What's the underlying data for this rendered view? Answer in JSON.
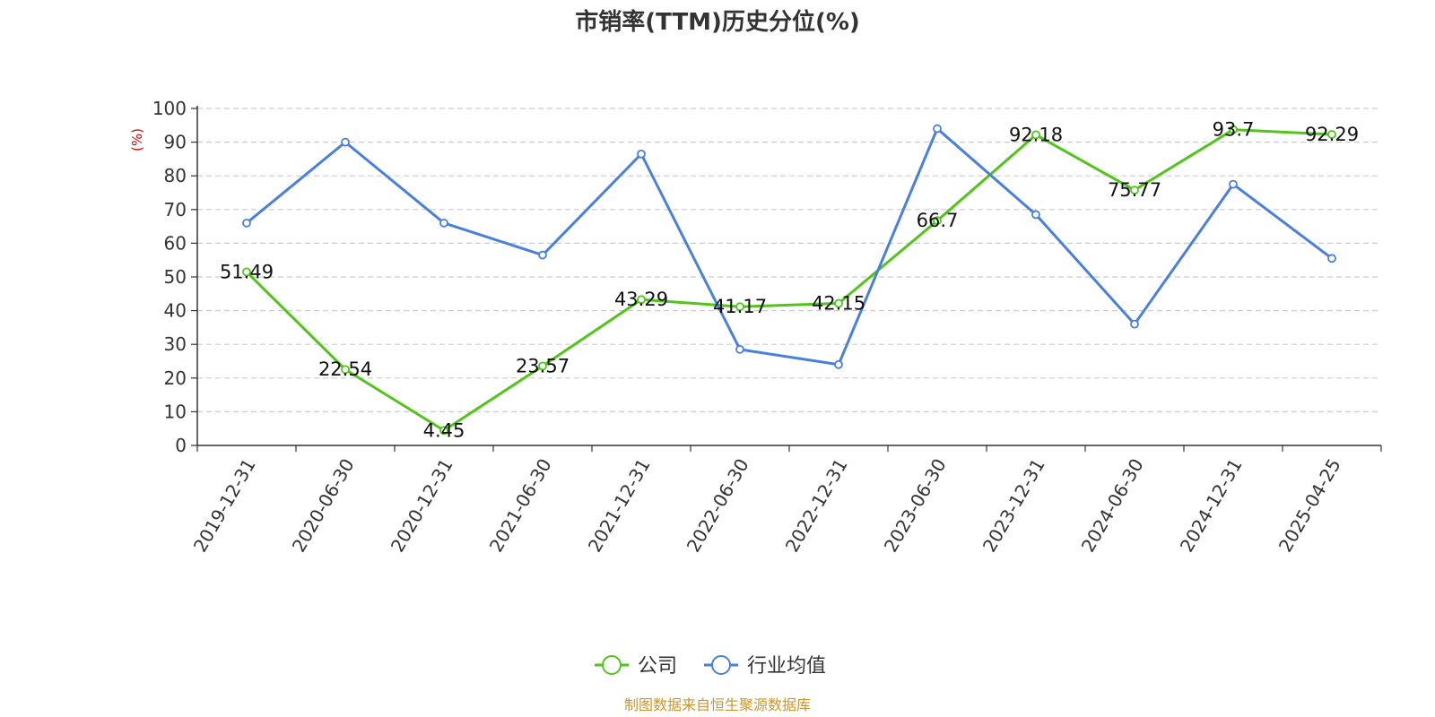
{
  "chart_data": {
    "type": "line",
    "title": "市销率(TTM)历史分位(%)",
    "ylabel": "(%)",
    "ylim": [
      0,
      100
    ],
    "yticks": [
      0,
      10,
      20,
      30,
      40,
      50,
      60,
      70,
      80,
      90,
      100
    ],
    "grid": true,
    "legend_position": "bottom-center",
    "categories": [
      "2019-12-31",
      "2020-06-30",
      "2020-12-31",
      "2021-06-30",
      "2021-12-31",
      "2022-06-30",
      "2022-12-31",
      "2023-06-30",
      "2023-12-31",
      "2024-06-30",
      "2024-12-31",
      "2025-04-25"
    ],
    "series": [
      {
        "name": "公司",
        "color": "#52c41a",
        "values": [
          51.49,
          22.54,
          4.45,
          23.57,
          43.29,
          41.17,
          42.15,
          66.7,
          92.18,
          75.77,
          93.7,
          92.29
        ],
        "data_labels": [
          "51.49",
          "22.54",
          "4.45",
          "23.57",
          "43.29",
          "41.17",
          "42.15",
          "66.7",
          "92.18",
          "75.77",
          "93.7",
          "92.29"
        ]
      },
      {
        "name": "行业均值",
        "color": "#4a7fdc",
        "values": [
          66,
          90,
          66,
          56.5,
          86.5,
          28.5,
          24,
          94,
          68.5,
          36,
          77.5,
          55.5
        ]
      }
    ]
  },
  "colors": {
    "ylabel": "#e60000",
    "source": "#c8962e",
    "grid": "#cccccc",
    "axis": "#333333"
  },
  "source_text": "制图数据来自恒生聚源数据库"
}
